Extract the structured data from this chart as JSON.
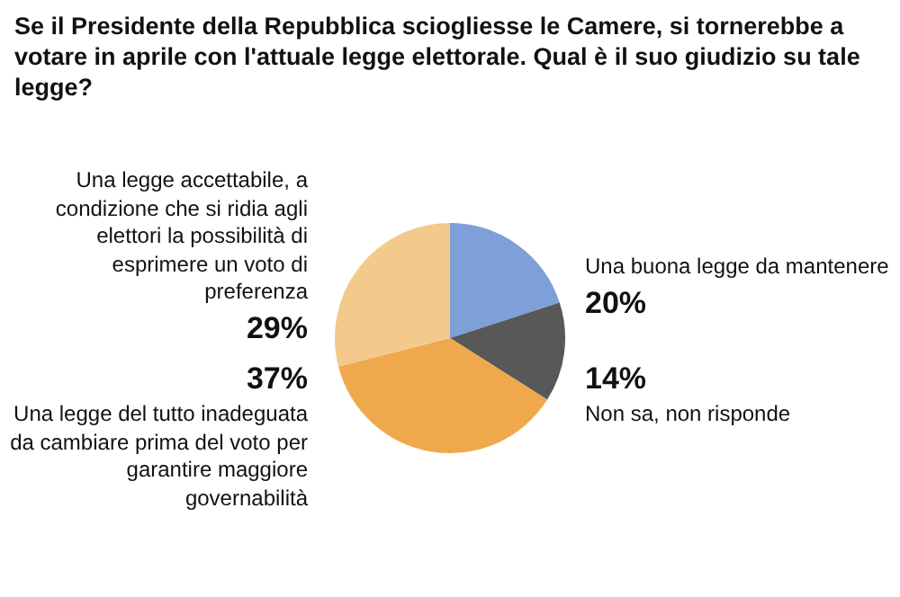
{
  "chart_data": {
    "type": "pie",
    "title": "Se il Presidente della Repubblica sciogliesse le Camere, si tornerebbe a votare in aprile con l'attuale legge elettorale. Qual è il suo giudizio su tale legge?",
    "categories": [
      "Una buona legge da mantenere",
      "Non sa, non risponde",
      "Una legge del tutto inadeguata da cambiare prima del voto per garantire maggiore governabilità",
      "Una legge accettabile, a condizione che si ridia agli elettori la possibilità di esprimere un voto di preferenza"
    ],
    "values": [
      20,
      14,
      37,
      29
    ],
    "colors": [
      "#7f9fd9",
      "#585858",
      "#efa94c",
      "#f3c98c"
    ],
    "value_labels": [
      "20%",
      "14%",
      "37%",
      "29%"
    ],
    "legend": false
  }
}
